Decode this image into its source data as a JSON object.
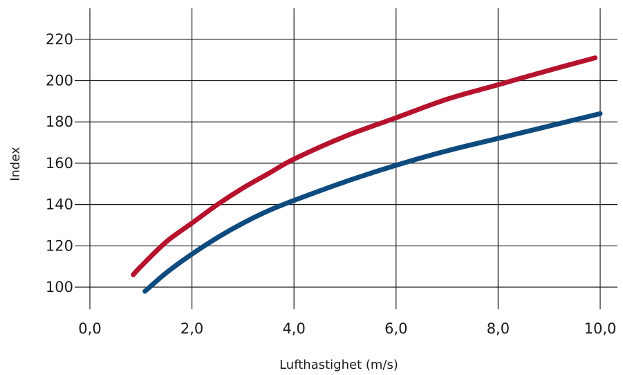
{
  "chart_data": {
    "type": "line",
    "title": "",
    "xlabel": "Lufthastighet (m/s)",
    "ylabel": "Index",
    "xlim": [
      0,
      10
    ],
    "ylim": [
      90,
      235
    ],
    "x_ticks": [
      0,
      2,
      4,
      6,
      8,
      10
    ],
    "x_tick_labels": [
      "0,0",
      "2,0",
      "4,0",
      "6,0",
      "8,0",
      "10,0"
    ],
    "y_ticks": [
      100,
      120,
      140,
      160,
      180,
      200,
      220
    ],
    "y_tick_labels": [
      "100",
      "120",
      "140",
      "160",
      "180",
      "200",
      "220"
    ],
    "grid": true,
    "legend": "none",
    "series": [
      {
        "color": "#b5122e",
        "x": [
          0.85,
          1.0,
          1.5,
          2.0,
          2.5,
          3.0,
          3.5,
          4.0,
          5.0,
          6.0,
          7.0,
          8.0,
          9.0,
          9.9
        ],
        "y": [
          106,
          110,
          122,
          131,
          140,
          148,
          155,
          162,
          173,
          182,
          191,
          198,
          205,
          211
        ]
      },
      {
        "color": "#0d4a7e",
        "x": [
          1.08,
          1.5,
          2.0,
          2.5,
          3.0,
          3.5,
          4.0,
          5.0,
          6.0,
          7.0,
          8.0,
          9.0,
          10.0
        ],
        "y": [
          98,
          107,
          116,
          124,
          131,
          137,
          142,
          151,
          159,
          166,
          172,
          178,
          184
        ]
      }
    ]
  }
}
